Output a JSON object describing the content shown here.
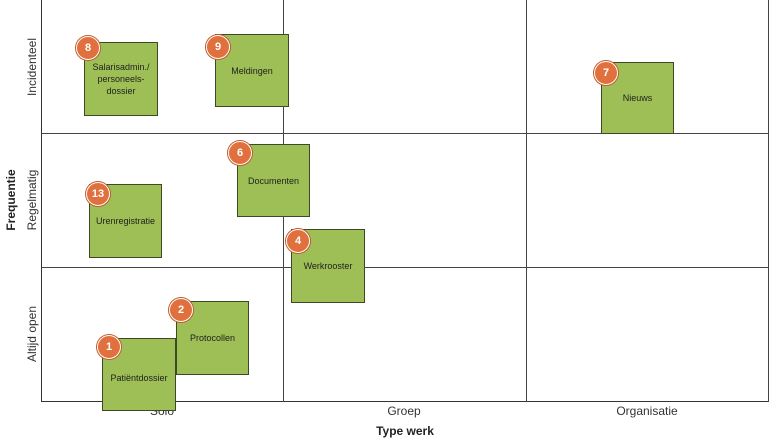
{
  "x_axis": {
    "title": "Type werk",
    "columns": [
      "Solo",
      "Groep",
      "Organisatie"
    ]
  },
  "y_axis": {
    "title": "Frequentie",
    "rows": [
      "Incidenteel",
      "Regelmatig",
      "Altijd open"
    ]
  },
  "items": [
    {
      "badge": "8",
      "label": "Salarisadmin./\npersoneels-\ndossier"
    },
    {
      "badge": "9",
      "label": "Meldingen"
    },
    {
      "badge": "7",
      "label": "Nieuws"
    },
    {
      "badge": "6",
      "label": "Documenten"
    },
    {
      "badge": "13",
      "label": "Urenregistratie"
    },
    {
      "badge": "4",
      "label": "Werkrooster"
    },
    {
      "badge": "2",
      "label": "Protocollen"
    },
    {
      "badge": "1",
      "label": "Patiëntdossier"
    }
  ],
  "colors": {
    "card": "#9dbf55",
    "badge": "#e0703d"
  }
}
